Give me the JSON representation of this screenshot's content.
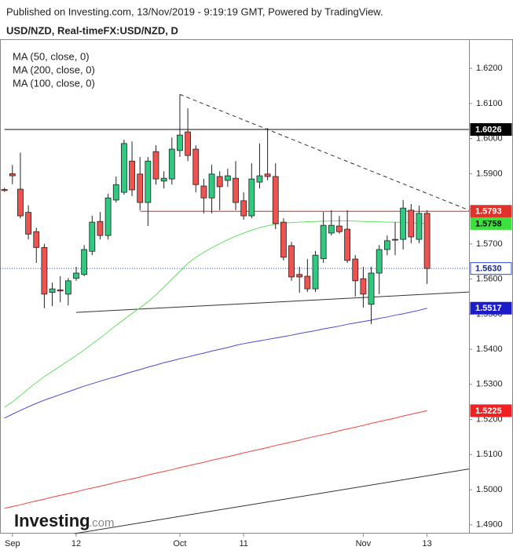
{
  "chart_data": {
    "type": "candlestick",
    "header": "Published on Investing.com, 13/Nov/2019 - 9:19:19 GMT, Powered by TradingView.",
    "title": "USD/NZD, Real-timeFX:USD/NZD, D",
    "watermark": {
      "brand": "Investing",
      "suffix": ".com"
    },
    "categories": [
      null,
      "Sep",
      null,
      null,
      null,
      null,
      null,
      null,
      null,
      "12",
      null,
      null,
      null,
      null,
      null,
      null,
      null,
      null,
      null,
      null,
      null,
      null,
      "Oct",
      null,
      null,
      null,
      null,
      null,
      null,
      null,
      "11",
      null,
      null,
      null,
      null,
      null,
      null,
      null,
      null,
      null,
      null,
      null,
      null,
      null,
      null,
      "Nov",
      null,
      null,
      null,
      null,
      null,
      null,
      null,
      "13"
    ],
    "open": [
      1.5855,
      1.59,
      1.5856,
      1.579,
      1.5735,
      1.569,
      1.5562,
      1.5569,
      1.5557,
      1.5602,
      1.5613,
      1.5679,
      1.5764,
      1.5724,
      1.5825,
      1.5847,
      1.5936,
      1.5899,
      1.5818,
      1.5963,
      1.5879,
      1.5885,
      1.5966,
      1.6019,
      1.597,
      1.5865,
      1.5831,
      1.5892,
      1.5881,
      1.5887,
      1.5823,
      1.578,
      1.5876,
      1.5899,
      1.5892,
      1.5762,
      1.5695,
      1.5613,
      1.5608,
      1.5572,
      1.5658,
      1.5731,
      1.5751,
      1.5742,
      1.5657,
      1.5601,
      1.5528,
      1.5617,
      1.5684,
      1.5711,
      1.5713,
      1.5796,
      1.5713,
      1.5787
    ],
    "high": [
      1.586,
      1.5925,
      1.596,
      1.581,
      1.5746,
      1.57,
      1.559,
      1.5608,
      1.5603,
      1.5635,
      1.5697,
      1.578,
      1.5791,
      1.5843,
      1.5892,
      1.5997,
      1.5992,
      1.5948,
      1.5948,
      1.5981,
      1.5907,
      1.6003,
      1.6126,
      1.6086,
      1.5981,
      1.5885,
      1.5925,
      1.5907,
      1.5914,
      1.5936,
      1.5847,
      1.593,
      1.5986,
      1.603,
      1.593,
      1.5773,
      1.5706,
      1.5635,
      1.5657,
      1.568,
      1.5791,
      1.5796,
      1.578,
      1.5796,
      1.5668,
      1.5635,
      1.5635,
      1.5697,
      1.5724,
      1.5762,
      1.5825,
      1.5814,
      1.5809,
      1.5796
    ],
    "low": [
      1.5848,
      1.587,
      1.5773,
      1.5713,
      1.5646,
      1.5517,
      1.5523,
      1.5534,
      1.5525,
      1.5595,
      1.5608,
      1.5668,
      1.5713,
      1.5713,
      1.5818,
      1.584,
      1.5836,
      1.5796,
      1.5751,
      1.5869,
      1.5858,
      1.5869,
      1.5948,
      1.5936,
      1.5847,
      1.5787,
      1.5787,
      1.5796,
      1.5863,
      1.5796,
      1.5769,
      1.5773,
      1.5858,
      1.5881,
      1.5742,
      1.5653,
      1.5595,
      1.5561,
      1.5563,
      1.5563,
      1.5646,
      1.5724,
      1.5729,
      1.5646,
      1.555,
      1.5519,
      1.5472,
      1.5557,
      1.5668,
      1.5668,
      1.5684,
      1.5702,
      1.5702,
      1.5586
    ],
    "close": [
      1.5852,
      1.5894,
      1.578,
      1.5728,
      1.569,
      1.5557,
      1.5572,
      1.5566,
      1.5595,
      1.5617,
      1.5684,
      1.5762,
      1.5724,
      1.5831,
      1.5869,
      1.5986,
      1.5854,
      1.5818,
      1.5936,
      1.5885,
      1.5887,
      1.597,
      1.601,
      1.5952,
      1.5869,
      1.5831,
      1.5899,
      1.5863,
      1.5894,
      1.5818,
      1.578,
      1.5885,
      1.5894,
      1.5892,
      1.5758,
      1.5662,
      1.5606,
      1.5606,
      1.5572,
      1.5668,
      1.5753,
      1.5753,
      1.5735,
      1.5653,
      1.5595,
      1.5557,
      1.5617,
      1.5684,
      1.5709,
      1.5713,
      1.5802,
      1.572,
      1.5787,
      1.563
    ],
    "up_color": "#2fc97f",
    "down_color": "#ef5350",
    "series": [
      {
        "name": "MA (50, close, 0)",
        "color": "#66e066",
        "values": [
          1.5235,
          1.525,
          1.5268,
          1.5287,
          1.5305,
          1.5322,
          1.5337,
          1.5352,
          1.5367,
          1.5382,
          1.5398,
          1.5415,
          1.5432,
          1.545,
          1.5468,
          1.5485,
          1.5502,
          1.5518,
          1.5535,
          1.5555,
          1.5577,
          1.56,
          1.5622,
          1.5645,
          1.5662,
          1.5676,
          1.5689,
          1.5701,
          1.5712,
          1.5722,
          1.5731,
          1.5739,
          1.5746,
          1.5752,
          1.5756,
          1.5759,
          1.5761,
          1.5762,
          1.5763,
          1.5764,
          1.5765,
          1.5765,
          1.5766,
          1.5766,
          1.5765,
          1.5764,
          1.5763,
          1.5763,
          1.5762,
          1.5762,
          1.5761,
          1.576,
          1.5759,
          1.5758
        ]
      },
      {
        "name": "MA (200, close, 0)",
        "color": "#f0463c",
        "values": [
          1.4947,
          1.4952,
          1.4957,
          1.4963,
          1.4968,
          1.4973,
          1.4979,
          1.4984,
          1.4989,
          1.4994,
          1.5,
          1.5005,
          1.501,
          1.5015,
          1.5021,
          1.5026,
          1.5031,
          1.5036,
          1.5042,
          1.5047,
          1.5052,
          1.5057,
          1.5063,
          1.5068,
          1.5073,
          1.5078,
          1.5084,
          1.5089,
          1.5094,
          1.5099,
          1.5105,
          1.511,
          1.5115,
          1.512,
          1.5126,
          1.5131,
          1.5136,
          1.5141,
          1.5147,
          1.5152,
          1.5157,
          1.5162,
          1.5168,
          1.5173,
          1.5178,
          1.5183,
          1.5189,
          1.5194,
          1.5199,
          1.5204,
          1.521,
          1.5215,
          1.522,
          1.5225
        ]
      },
      {
        "name": "MA (100, close, 0)",
        "color": "#4a4ad8",
        "values": [
          1.5204,
          1.5215,
          1.5226,
          1.5236,
          1.5246,
          1.5255,
          1.5263,
          1.5271,
          1.5279,
          1.5287,
          1.5295,
          1.5302,
          1.5309,
          1.5316,
          1.5322,
          1.5329,
          1.5336,
          1.5342,
          1.5349,
          1.5355,
          1.5362,
          1.5367,
          1.5373,
          1.5378,
          1.5384,
          1.5389,
          1.5395,
          1.54,
          1.5405,
          1.5411,
          1.5416,
          1.542,
          1.5424,
          1.5428,
          1.5432,
          1.5436,
          1.544,
          1.5445,
          1.5449,
          1.5453,
          1.5458,
          1.5462,
          1.5466,
          1.5471,
          1.5475,
          1.5479,
          1.5483,
          1.5488,
          1.5492,
          1.5497,
          1.5501,
          1.5506,
          1.5511,
          1.5517
        ]
      }
    ],
    "drawings": [
      {
        "x": [
          0,
          58.3
        ],
        "y": [
          1.6026,
          1.6026
        ],
        "color": "#111111",
        "dash": false
      },
      {
        "x": [
          17,
          58.3
        ],
        "y": [
          1.5793,
          1.5793
        ],
        "color": "#d42a2a",
        "dash": false
      },
      {
        "x": [
          22,
          58.3
        ],
        "y": [
          1.6126,
          1.5796
        ],
        "color": "#333333",
        "dash": true
      },
      {
        "x": [
          9,
          58.3
        ],
        "y": [
          1.5505,
          1.5563
        ],
        "color": "#333333",
        "dash": false
      },
      {
        "x": [
          8.8,
          58.3
        ],
        "y": [
          1.4875,
          1.5059
        ],
        "color": "#333333",
        "dash": false
      }
    ],
    "current_price": 1.563,
    "price_labels": [
      {
        "value": 1.6026,
        "label": "1.6026",
        "color": "#000000",
        "text_color": "#ffffff"
      },
      {
        "value": 1.5793,
        "label": "1.5793",
        "color": "#e0322b",
        "text_color": "#ffffff"
      },
      {
        "value": 1.5758,
        "label": "1.5758",
        "color": "#3ee03e",
        "text_color": "#000000"
      },
      {
        "value": 1.563,
        "label": "1.5630",
        "color": "#ffffff",
        "text_color": "#1a2a8a"
      },
      {
        "value": 1.5517,
        "label": "1.5517",
        "color": "#1c1cc8",
        "text_color": "#ffffff"
      },
      {
        "value": 1.5225,
        "label": "1.5225",
        "color": "#ee2222",
        "text_color": "#ffffff"
      }
    ],
    "ylim": [
      1.4875,
      1.6283
    ],
    "yticks": [
      {
        "value": 1.49,
        "label": "1.4900"
      },
      {
        "value": 1.5,
        "label": "1.5000"
      },
      {
        "value": 1.51,
        "label": "1.5100"
      },
      {
        "value": 1.52,
        "label": "1.5200"
      },
      {
        "value": 1.53,
        "label": "1.5300"
      },
      {
        "value": 1.54,
        "label": "1.5400"
      },
      {
        "value": 1.55,
        "label": "1.5500"
      },
      {
        "value": 1.56,
        "label": "1.5600"
      },
      {
        "value": 1.57,
        "label": "1.5700"
      },
      {
        "value": 1.58,
        "label": "1.5800"
      },
      {
        "value": 1.59,
        "label": "1.5900"
      },
      {
        "value": 1.6,
        "label": "1.6000"
      },
      {
        "value": 1.61,
        "label": "1.6100"
      },
      {
        "value": 1.62,
        "label": "1.6200"
      }
    ],
    "grid": false
  }
}
